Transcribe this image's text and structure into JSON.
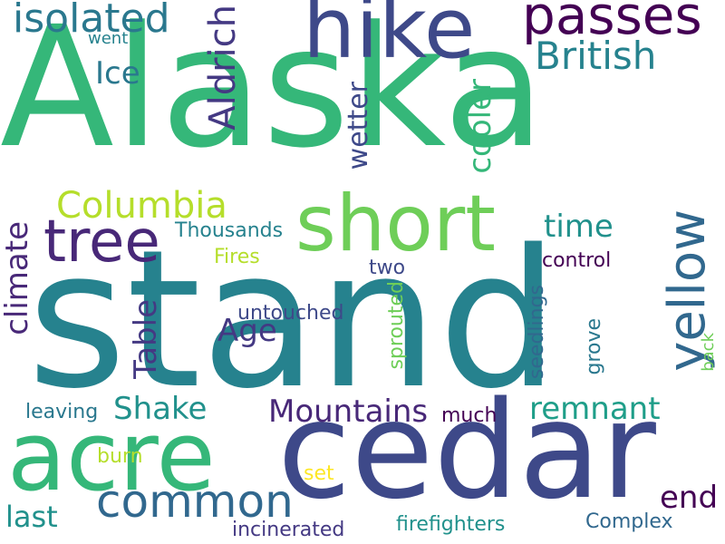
{
  "words": [
    {
      "text": "Alaska",
      "color": "#35b779"
    },
    {
      "text": "stand",
      "color": "#26828e"
    },
    {
      "text": "cedar",
      "color": "#3e4989"
    },
    {
      "text": "acre",
      "color": "#35b779"
    },
    {
      "text": "short",
      "color": "#6ece58"
    },
    {
      "text": "hike",
      "color": "#3e4989"
    },
    {
      "text": "passes",
      "color": "#440154"
    },
    {
      "text": "tree",
      "color": "#482878"
    },
    {
      "text": "yellow",
      "color": "#31688e"
    },
    {
      "text": "British",
      "color": "#26828e"
    },
    {
      "text": "isolated",
      "color": "#2a788e"
    },
    {
      "text": "common",
      "color": "#31688e"
    },
    {
      "text": "Aldrich",
      "color": "#443983"
    },
    {
      "text": "Columbia",
      "color": "#b5de2b"
    },
    {
      "text": "Mountains",
      "color": "#482878"
    },
    {
      "text": "climate",
      "color": "#482878"
    },
    {
      "text": "Ice",
      "color": "#2a788e"
    },
    {
      "text": "cooler",
      "color": "#35b779"
    },
    {
      "text": "wetter",
      "color": "#3e4989"
    },
    {
      "text": "Table",
      "color": "#443983"
    },
    {
      "text": "Shake",
      "color": "#21918c"
    },
    {
      "text": "remnant",
      "color": "#1f9e89"
    },
    {
      "text": "time",
      "color": "#21918c"
    },
    {
      "text": "Age",
      "color": "#443983"
    },
    {
      "text": "end",
      "color": "#440154"
    },
    {
      "text": "last",
      "color": "#21918c"
    },
    {
      "text": "Complex",
      "color": "#31688e"
    },
    {
      "text": "Thousands",
      "color": "#26828e"
    },
    {
      "text": "Fires",
      "color": "#b5de2b"
    },
    {
      "text": "two",
      "color": "#3e4989"
    },
    {
      "text": "control",
      "color": "#440154"
    },
    {
      "text": "sprouted",
      "color": "#6ece58"
    },
    {
      "text": "seedlings",
      "color": "#31688e"
    },
    {
      "text": "grove",
      "color": "#2a788e"
    },
    {
      "text": "untouched",
      "color": "#3e4989"
    },
    {
      "text": "leaving",
      "color": "#2a788e"
    },
    {
      "text": "much",
      "color": "#440154"
    },
    {
      "text": "back",
      "color": "#6ece58"
    },
    {
      "text": "burn",
      "color": "#b5de2b"
    },
    {
      "text": "set",
      "color": "#fde725"
    },
    {
      "text": "went",
      "color": "#26828e"
    },
    {
      "text": "incinerated",
      "color": "#443983"
    },
    {
      "text": "firefighters",
      "color": "#21918c"
    }
  ]
}
